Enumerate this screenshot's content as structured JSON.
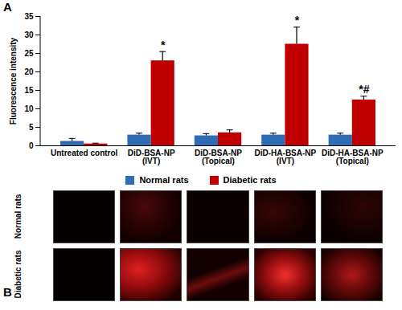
{
  "chart_data": {
    "type": "bar",
    "panel_label": "A",
    "categories": [
      "Untreated control",
      "DiD-BSA-NP (IVT)",
      "DiD-BSA-NP (Topical)",
      "DiD-HA-BSA-NP (IVT)",
      "DiD-HA-BSA-NP (Topical)"
    ],
    "y_label": "Fluorescence intensity",
    "ylim": [
      0,
      35
    ],
    "yticks": [
      0,
      5,
      10,
      15,
      20,
      25,
      30,
      35
    ],
    "grid": false,
    "legend": "bottom",
    "series": [
      {
        "name": "Normal rats",
        "color": "#2e6db4",
        "values": [
          1.2,
          2.9,
          2.7,
          2.9,
          2.9
        ],
        "errors": [
          0.8,
          0.5,
          0.6,
          0.5,
          0.5
        ]
      },
      {
        "name": "Diabetic rats",
        "color": "#c00000",
        "values": [
          0.5,
          23,
          3.5,
          27.5,
          12.4
        ],
        "errors": [
          0.2,
          2.5,
          0.8,
          4.6,
          1.0
        ]
      }
    ],
    "annotations": [
      {
        "category": "DiD-BSA-NP (IVT)",
        "series": "Diabetic rats",
        "text": "*"
      },
      {
        "category": "DiD-HA-BSA-NP (IVT)",
        "series": "Diabetic rats",
        "text": "*"
      },
      {
        "category": "DiD-HA-BSA-NP (Topical)",
        "series": "Diabetic rats",
        "text": "*#"
      }
    ]
  },
  "panel_b": {
    "panel_label": "B",
    "rows": [
      "Normal rats",
      "Diabetic rats"
    ]
  }
}
